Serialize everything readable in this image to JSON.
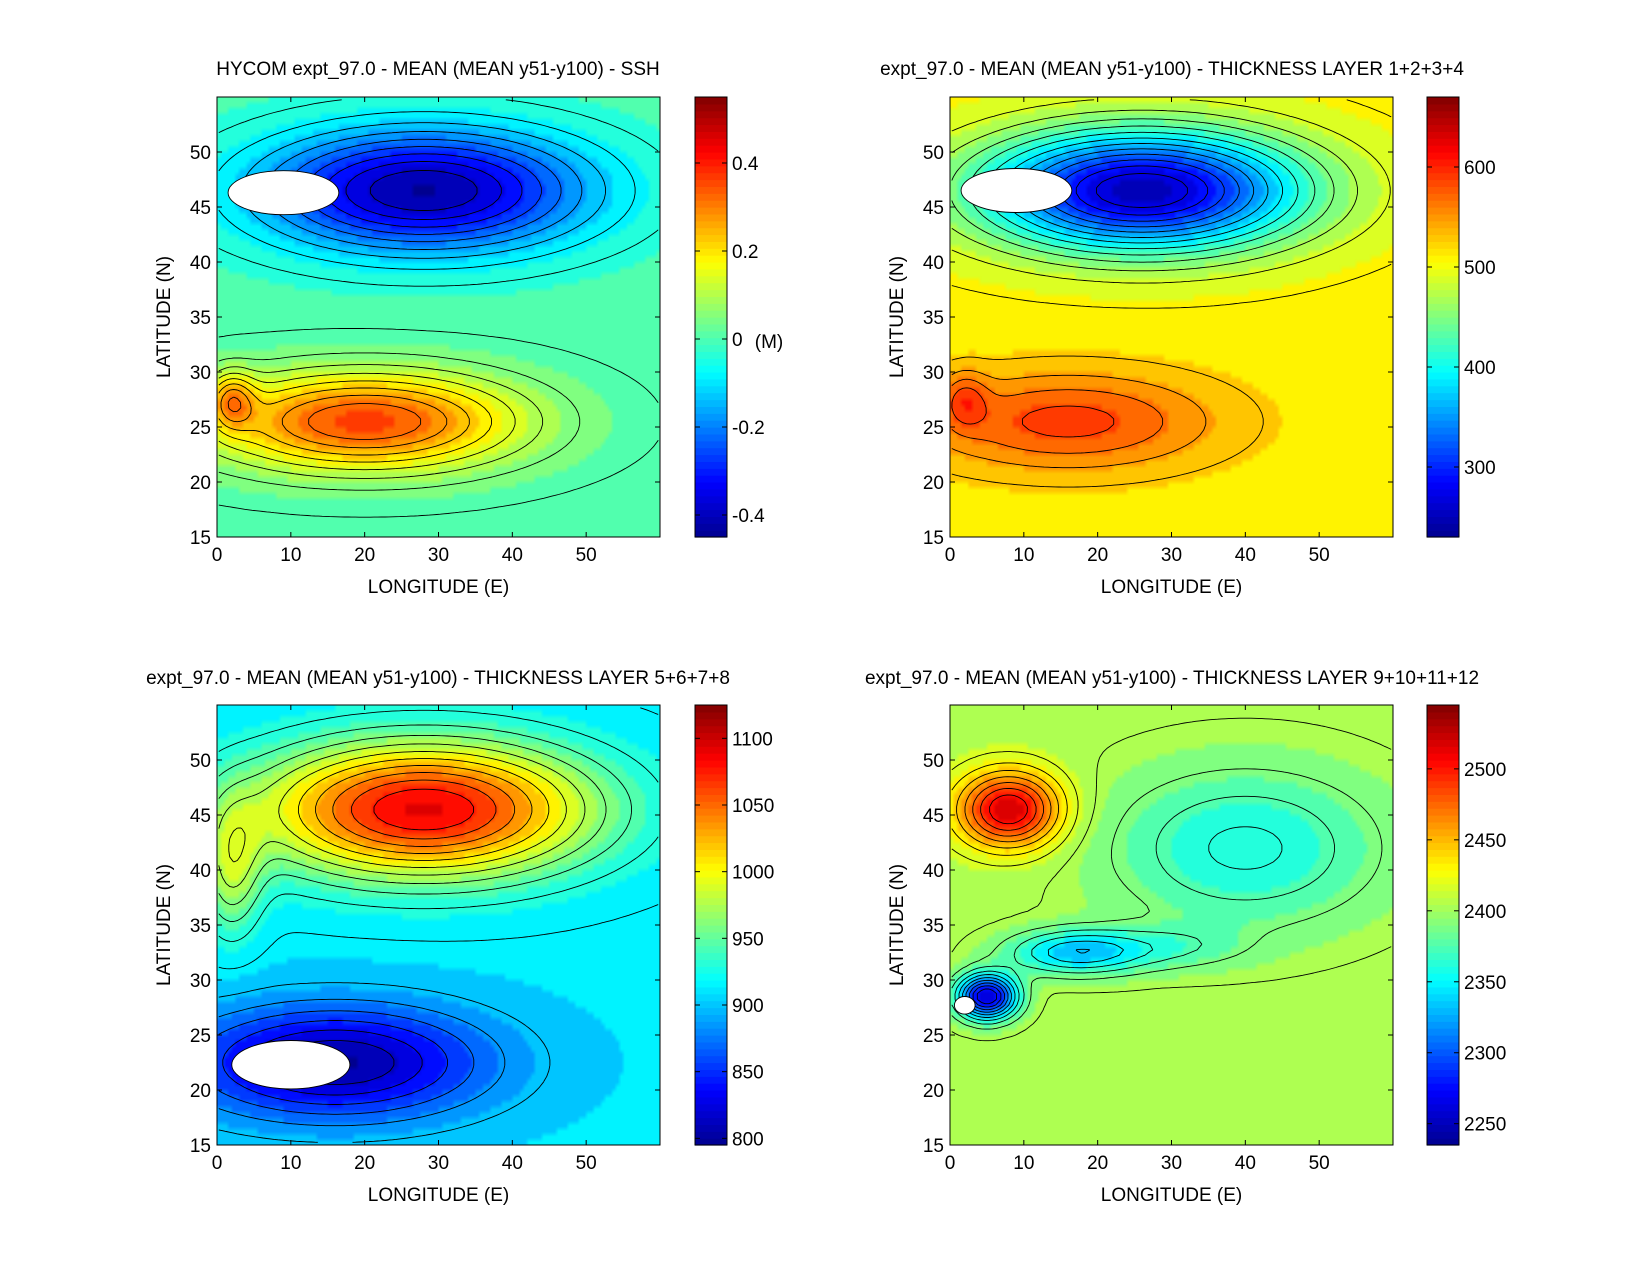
{
  "figure": {
    "colormap": [
      "#00008f",
      "#0000ff",
      "#0080ff",
      "#00ffff",
      "#80ff80",
      "#ffff00",
      "#ff8000",
      "#ff0000",
      "#800000"
    ],
    "land_color": "#ffffff",
    "contour_color": "#000000"
  },
  "chart_data": [
    {
      "type": "heatmap",
      "title": "HYCOM expt_97.0 - MEAN (MEAN y51-y100) - SSH",
      "xlabel": "LONGITUDE (E)",
      "ylabel": "LATITUDE (N)",
      "xlim": [
        0,
        60
      ],
      "ylim": [
        15,
        55
      ],
      "xticks": [
        0,
        10,
        20,
        30,
        40,
        50
      ],
      "yticks": [
        15,
        20,
        25,
        30,
        35,
        40,
        45,
        50
      ],
      "colorbar": {
        "min": -0.45,
        "max": 0.55,
        "ticks": [
          -0.4,
          -0.2,
          0,
          0.2,
          0.4
        ],
        "ticklabels": [
          "-0.4",
          "-0.2",
          "0",
          "0.2",
          "0.4"
        ],
        "unit_label": "(M)"
      },
      "field": {
        "background": 0.0,
        "features": [
          {
            "lon": 28,
            "lat": 46.5,
            "value": -0.43,
            "sx": 22,
            "sy": 5.5
          },
          {
            "lon": 20,
            "lat": 25.5,
            "value": 0.36,
            "sx": 21,
            "sy": 4.5
          },
          {
            "lon": 2,
            "lat": 27.5,
            "value": 0.18,
            "sx": 3,
            "sy": 2.5
          }
        ],
        "masked": [
          {
            "lon": 9,
            "lat": 46.3,
            "rx": 7.5,
            "ry": 2
          }
        ]
      }
    },
    {
      "type": "heatmap",
      "title": "expt_97.0 - MEAN (MEAN y51-y100) - THICKNESS LAYER 1+2+3+4",
      "xlabel": "LONGITUDE (E)",
      "ylabel": "LATITUDE (N)",
      "xlim": [
        0,
        60
      ],
      "ylim": [
        15,
        55
      ],
      "xticks": [
        0,
        10,
        20,
        30,
        40,
        50
      ],
      "yticks": [
        15,
        20,
        25,
        30,
        35,
        40,
        45,
        50
      ],
      "colorbar": {
        "min": 230,
        "max": 670,
        "ticks": [
          300,
          400,
          500,
          600
        ],
        "ticklabels": [
          "300",
          "400",
          "500",
          "600"
        ],
        "unit_label": ""
      },
      "field": {
        "background": 510,
        "features": [
          {
            "lon": 26,
            "lat": 46.5,
            "value": -260,
            "sx": 22,
            "sy": 5.5
          },
          {
            "lon": 16,
            "lat": 25.5,
            "value": 80,
            "sx": 20,
            "sy": 4.5
          },
          {
            "lon": 2,
            "lat": 27.5,
            "value": 50,
            "sx": 3,
            "sy": 2.5
          }
        ],
        "masked": [
          {
            "lon": 9,
            "lat": 46.5,
            "rx": 7.5,
            "ry": 2
          }
        ]
      }
    },
    {
      "type": "heatmap",
      "title": "expt_97.0 - MEAN (MEAN y51-y100) - THICKNESS LAYER 5+6+7+8",
      "xlabel": "LONGITUDE (E)",
      "ylabel": "LATITUDE (N)",
      "xlim": [
        0,
        60
      ],
      "ylim": [
        15,
        55
      ],
      "xticks": [
        0,
        10,
        20,
        30,
        40,
        50
      ],
      "yticks": [
        15,
        20,
        25,
        30,
        35,
        40,
        45,
        50
      ],
      "colorbar": {
        "min": 795,
        "max": 1125,
        "ticks": [
          800,
          850,
          900,
          950,
          1000,
          1050,
          1100
        ],
        "ticklabels": [
          "800",
          "850",
          "900",
          "950",
          "1000",
          "1050",
          "1100"
        ],
        "unit_label": ""
      },
      "field": {
        "background": 910,
        "features": [
          {
            "lon": 28,
            "lat": 45.5,
            "value": 180,
            "sx": 22,
            "sy": 6
          },
          {
            "lon": 16,
            "lat": 22.5,
            "value": -110,
            "sx": 20,
            "sy": 5
          },
          {
            "lon": 2,
            "lat": 40,
            "value": 60,
            "sx": 4,
            "sy": 6
          }
        ],
        "masked": [
          {
            "lon": 10,
            "lat": 22.3,
            "rx": 8,
            "ry": 2.2
          }
        ]
      }
    },
    {
      "type": "heatmap",
      "title": "expt_97.0 - MEAN (MEAN y51-y100) - THICKNESS LAYER 9+10+11+12",
      "xlabel": "LONGITUDE (E)",
      "ylabel": "LATITUDE (N)",
      "xlim": [
        0,
        60
      ],
      "ylim": [
        15,
        55
      ],
      "xticks": [
        0,
        10,
        20,
        30,
        40,
        50
      ],
      "yticks": [
        15,
        20,
        25,
        30,
        35,
        40,
        45,
        50
      ],
      "colorbar": {
        "min": 2235,
        "max": 2545,
        "ticks": [
          2250,
          2300,
          2350,
          2400,
          2450,
          2500
        ],
        "ticklabels": [
          "2250",
          "2300",
          "2350",
          "2400",
          "2450",
          "2500"
        ],
        "unit_label": ""
      },
      "field": {
        "background": 2405,
        "features": [
          {
            "lon": 8,
            "lat": 45.5,
            "value": 115,
            "sx": 7,
            "sy": 3.5
          },
          {
            "lon": 40,
            "lat": 42,
            "value": -50,
            "sx": 18,
            "sy": 7
          },
          {
            "lon": 5,
            "lat": 28.5,
            "value": -150,
            "sx": 4,
            "sy": 2
          },
          {
            "lon": 17,
            "lat": 32.5,
            "value": -70,
            "sx": 9,
            "sy": 2
          },
          {
            "lon": 30,
            "lat": 33,
            "value": -25,
            "sx": 10,
            "sy": 2
          }
        ],
        "masked": [
          {
            "lon": 2,
            "lat": 27.7,
            "rx": 1.4,
            "ry": 0.8
          }
        ]
      }
    }
  ]
}
